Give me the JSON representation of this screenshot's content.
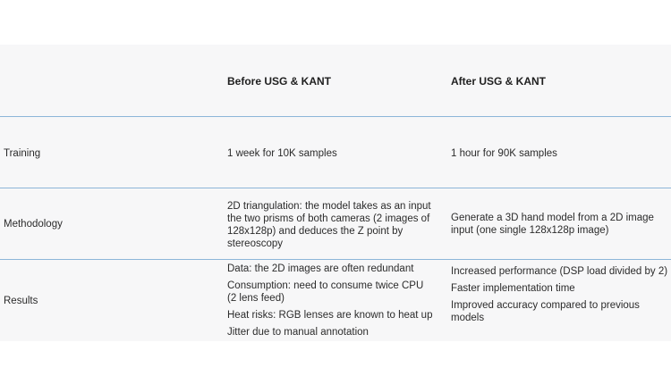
{
  "table": {
    "headers": [
      "",
      "Before USG & KANT",
      "After USG & KANT"
    ],
    "rows": [
      {
        "label": "Training",
        "before": [
          "1 week for 10K samples"
        ],
        "after": [
          "1 hour for 90K samples"
        ]
      },
      {
        "label": "Methodology",
        "before": [
          "2D triangulation: the model takes as an input the two prisms of both cameras (2 images of 128x128p) and deduces the Z point by stereoscopy"
        ],
        "after": [
          "Generate a 3D hand model from a 2D image input (one single 128x128p image)"
        ]
      },
      {
        "label": "Results",
        "before": [
          "Data: the 2D images are often redundant",
          "Consumption: need to consume twice CPU (2 lens feed)",
          "Heat risks: RGB lenses are known to heat up",
          "Jitter due to manual annotation"
        ],
        "after": [
          "Increased performance (DSP load divided by 2)",
          "Faster implementation time",
          "Improved accuracy compared to previous models"
        ]
      }
    ]
  }
}
